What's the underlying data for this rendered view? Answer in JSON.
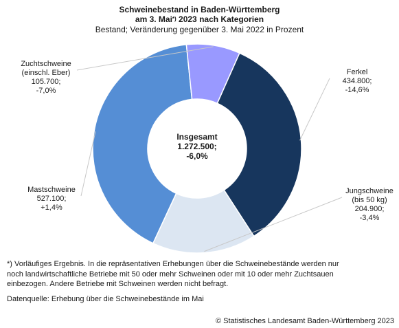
{
  "header": {
    "title_line1": "Schweinebestand in Baden-Württemberg",
    "title_line2_pre": "am 3. Mai",
    "title_line2_sup": "*)",
    "title_line2_post": " 2023 nach Kategorien",
    "subtitle": "Bestand; Veränderung gegenüber 3. Mai 2022 in Prozent"
  },
  "chart_data": {
    "type": "pie",
    "variant": "donut",
    "title": "Schweinebestand in Baden-Württemberg am 3. Mai*) 2023 nach Kategorien",
    "subtitle": "Bestand; Veränderung gegenüber 3. Mai 2022 in Prozent",
    "total": {
      "label": "Insgesamt",
      "value": 1272500,
      "value_text": "1.272.500;",
      "change_text": "-6,0%"
    },
    "slices": [
      {
        "label_lines": [
          "Ferkel"
        ],
        "value": 434800,
        "value_text": "434.800;",
        "change_text": "-14,6%",
        "color": "#17365d"
      },
      {
        "label_lines": [
          "Jungschweine",
          "(bis 50 kg)"
        ],
        "value": 204900,
        "value_text": "204.900;",
        "change_text": "-3,4%",
        "color": "#dce6f2"
      },
      {
        "label_lines": [
          "Mastschweine"
        ],
        "value": 527100,
        "value_text": "527.100;",
        "change_text": "+1,4%",
        "color": "#558ed5"
      },
      {
        "label_lines": [
          "Zuchtschweine",
          "(einschl. Eber)"
        ],
        "value": 105700,
        "value_text": "105.700;",
        "change_text": "-7,0%",
        "color": "#9999ff"
      }
    ]
  },
  "footnote": {
    "line1": "*) Vorläufiges Ergebnis. In die repräsentativen Erhebungen über die Schweinebestände werden nur",
    "line2": "noch landwirtschaftliche Betriebe mit 50 oder mehr Schweinen oder mit 10 oder mehr Zuchtsauen",
    "line3": "einbezogen. Andere Betriebe mit Schweinen werden nicht befragt."
  },
  "source": "Datenquelle: Erhebung über die Schweinebestände im Mai",
  "copyright": "© Statistisches Landesamt Baden-Württemberg 2023"
}
